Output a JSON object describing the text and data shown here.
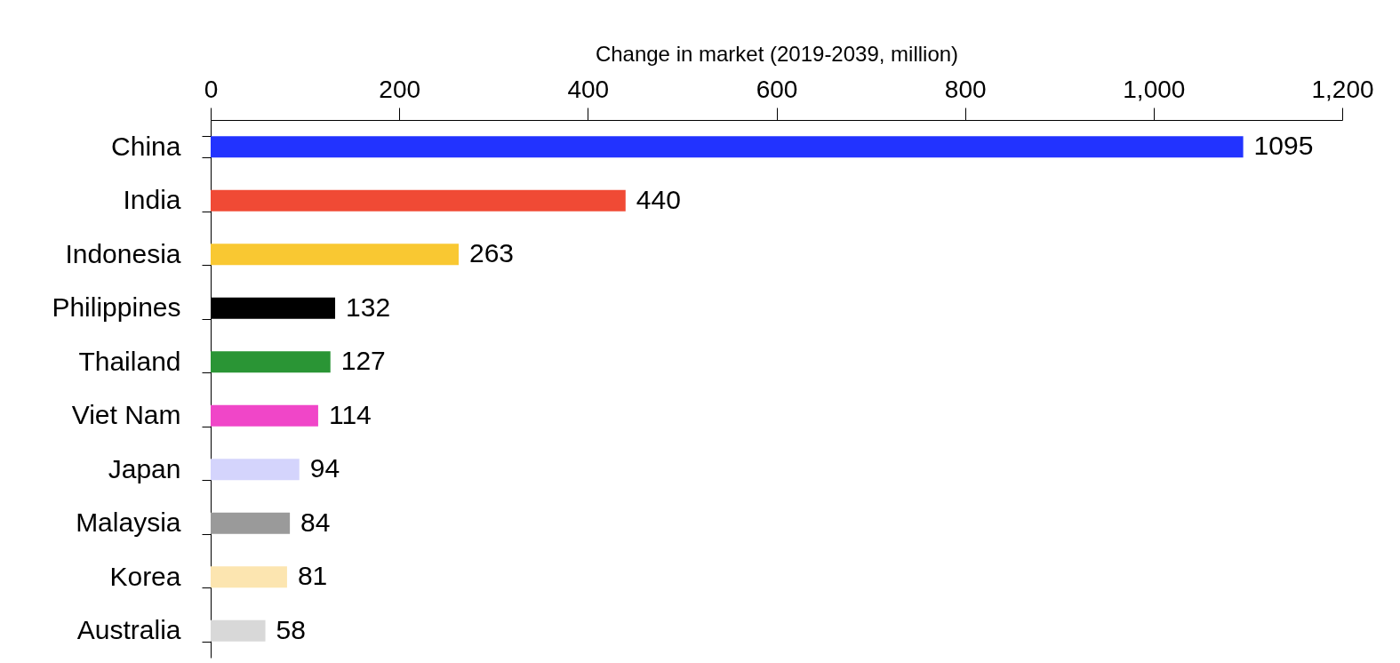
{
  "chart_data": {
    "type": "bar",
    "orientation": "horizontal",
    "xlabel": "Change in market (2019-2039, million)",
    "categories": [
      "China",
      "India",
      "Indonesia",
      "Philippines",
      "Thailand",
      "Viet Nam",
      "Japan",
      "Malaysia",
      "Korea",
      "Australia"
    ],
    "values": [
      1095,
      440,
      263,
      132,
      127,
      114,
      94,
      84,
      81,
      58
    ],
    "colors": [
      "#2233ff",
      "#f04a35",
      "#f9c832",
      "#000000",
      "#2a9535",
      "#f046c8",
      "#d4d4fc",
      "#9a9a9a",
      "#fce5b0",
      "#d8d8d8"
    ],
    "xlim": [
      0,
      1200
    ],
    "xticks": [
      0,
      200,
      400,
      600,
      800,
      {
        "value": 1000,
        "label": "1,000"
      },
      {
        "value": 1200,
        "label": "1,200"
      }
    ],
    "data_labels": true
  }
}
